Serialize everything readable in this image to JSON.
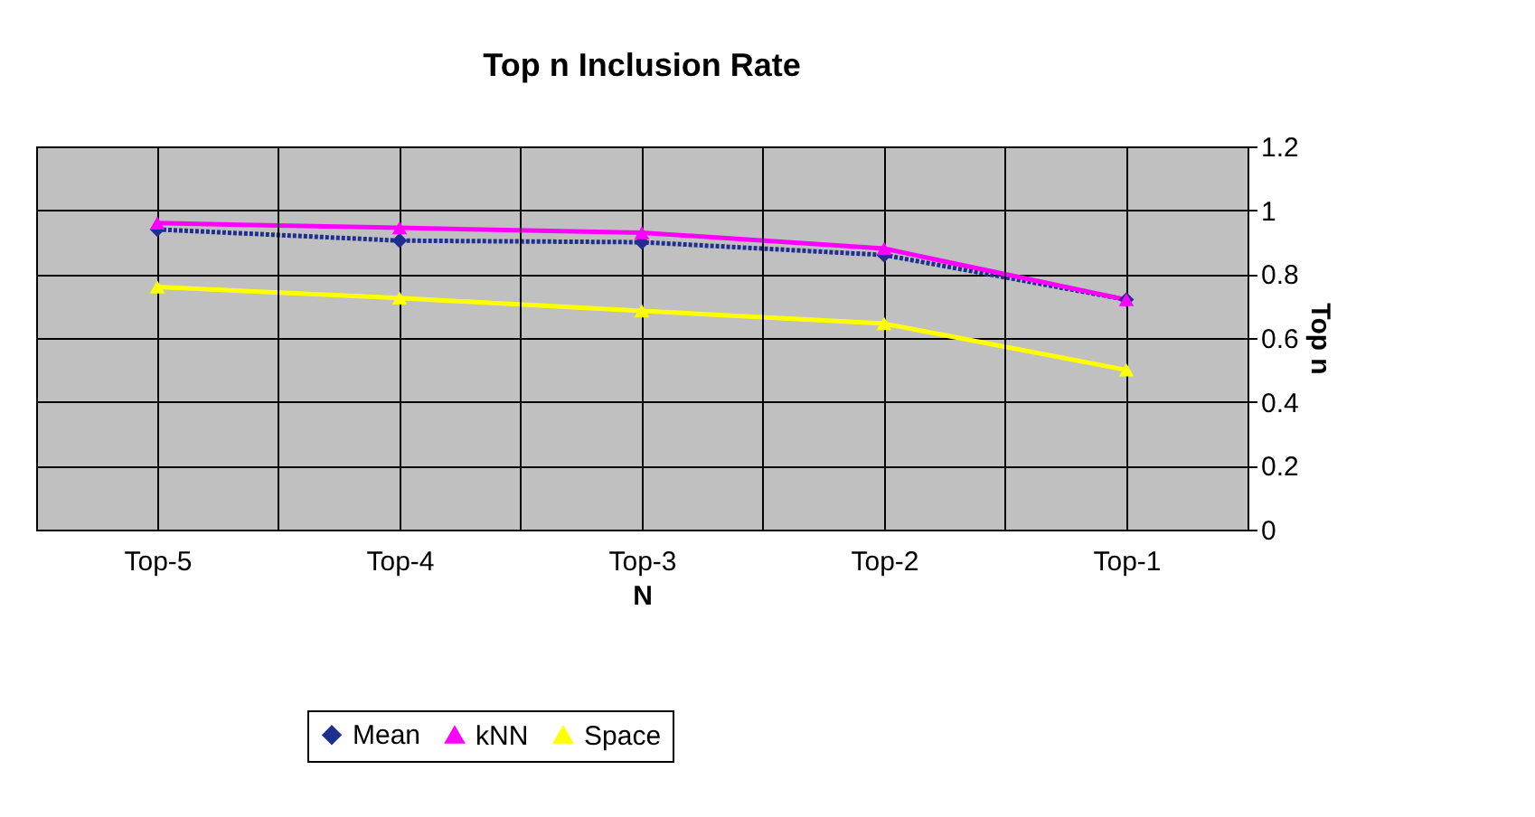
{
  "chart_data": {
    "type": "line",
    "title": "Top n Inclusion Rate",
    "xlabel": "N",
    "ylabel": "Top n",
    "categories": [
      "Top-5",
      "Top-4",
      "Top-3",
      "Top-2",
      "Top-1"
    ],
    "series": [
      {
        "name": "Mean",
        "color": "#1f2f8f",
        "marker": "diamond",
        "line_style": "dotted",
        "values": [
          0.94,
          0.905,
          0.9,
          0.86,
          0.72
        ]
      },
      {
        "name": "kNN",
        "color": "#ff00ff",
        "marker": "triangle",
        "line_style": "solid",
        "values": [
          0.96,
          0.945,
          0.93,
          0.88,
          0.72
        ]
      },
      {
        "name": "Space",
        "color": "#ffff00",
        "marker": "triangle",
        "line_style": "solid",
        "values": [
          0.76,
          0.725,
          0.685,
          0.645,
          0.5
        ]
      }
    ],
    "ylim": [
      0,
      1.2
    ],
    "yticks": [
      0,
      0.2,
      0.4,
      0.6,
      0.8,
      1,
      1.2
    ],
    "grid": true,
    "legend": "bottom"
  }
}
